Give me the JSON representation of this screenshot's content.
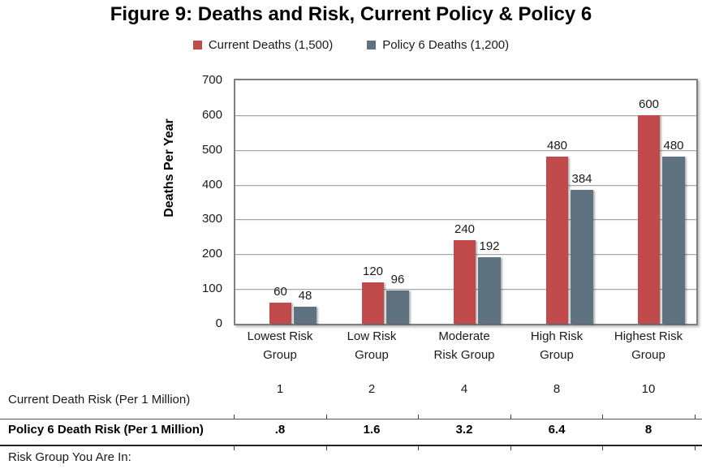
{
  "figure": {
    "title": "Figure 9: Deaths and Risk, Current Policy & Policy 6"
  },
  "chart_data": {
    "type": "bar",
    "title": "Figure 9: Deaths and Risk, Current Policy & Policy 6",
    "categories": [
      "Lowest Risk Group",
      "Low Risk Group",
      "Moderate Risk Group",
      "High Risk Group",
      "Highest Risk Group"
    ],
    "categories_wrapped": [
      [
        "Lowest Risk",
        "Group"
      ],
      [
        "Low Risk",
        "Group"
      ],
      [
        "Moderate",
        "Risk Group"
      ],
      [
        "High Risk",
        "Group"
      ],
      [
        "Highest Risk",
        "Group"
      ]
    ],
    "series": [
      {
        "name": "Current Deaths (1,500)",
        "color": "#C14A4A",
        "values": [
          60,
          120,
          240,
          480,
          600
        ],
        "data_labels": [
          "60",
          "120",
          "240",
          "480",
          "600"
        ]
      },
      {
        "name": "Policy 6 Deaths (1,200)",
        "color": "#5F7280",
        "values": [
          48,
          96,
          192,
          384,
          480
        ],
        "data_labels": [
          "48",
          "96",
          "192",
          "384",
          "480"
        ]
      }
    ],
    "xlabel": "",
    "ylabel": "Deaths Per Year",
    "ylim": [
      0,
      700
    ],
    "yticks": [
      0,
      100,
      200,
      300,
      400,
      500,
      600,
      700
    ],
    "grid": true,
    "legend_position": "top"
  },
  "risk_table": {
    "rows": [
      {
        "label": "Current Death Risk (Per 1 Million)",
        "values": [
          "1",
          "2",
          "4",
          "8",
          "10"
        ],
        "bold": false
      },
      {
        "label": "Policy 6 Death Risk (Per 1 Million)",
        "values": [
          ".8",
          "1.6",
          "3.2",
          "6.4",
          "8"
        ],
        "bold": true
      },
      {
        "label": "Risk Group You Are In:",
        "values": [
          "",
          "",
          "",
          "",
          ""
        ],
        "bold": false
      }
    ]
  },
  "colors": {
    "current_series": "#C14A4A",
    "policy6_series": "#5F7280",
    "gridline": "#A6A6A6",
    "plot_border": "#7F7F7F"
  }
}
